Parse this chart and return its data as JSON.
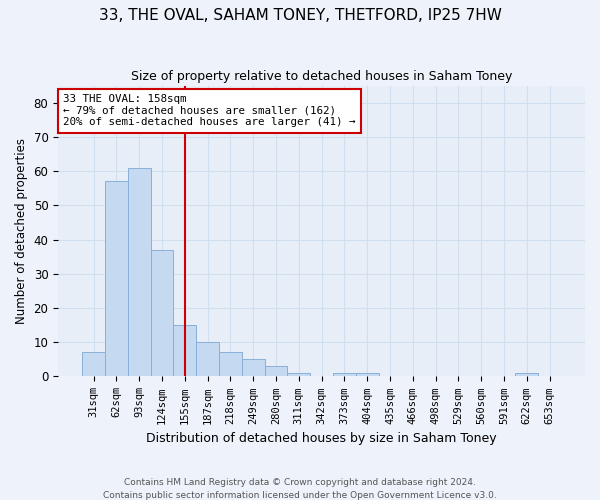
{
  "title1": "33, THE OVAL, SAHAM TONEY, THETFORD, IP25 7HW",
  "title2": "Size of property relative to detached houses in Saham Toney",
  "xlabel": "Distribution of detached houses by size in Saham Toney",
  "ylabel": "Number of detached properties",
  "categories": [
    "31sqm",
    "62sqm",
    "93sqm",
    "124sqm",
    "155sqm",
    "187sqm",
    "218sqm",
    "249sqm",
    "280sqm",
    "311sqm",
    "342sqm",
    "373sqm",
    "404sqm",
    "435sqm",
    "466sqm",
    "498sqm",
    "529sqm",
    "560sqm",
    "591sqm",
    "622sqm",
    "653sqm"
  ],
  "values": [
    7,
    57,
    61,
    37,
    15,
    10,
    7,
    5,
    3,
    1,
    0,
    1,
    1,
    0,
    0,
    0,
    0,
    0,
    0,
    1,
    0
  ],
  "bar_color": "#c5d9f0",
  "bar_edge_color": "#8ab0d8",
  "vline_x_index": 4,
  "vline_color": "#cc0000",
  "annotation_text": "33 THE OVAL: 158sqm\n← 79% of detached houses are smaller (162)\n20% of semi-detached houses are larger (41) →",
  "annotation_box_color": "#ffffff",
  "annotation_box_edge_color": "#cc0000",
  "ylim": [
    0,
    85
  ],
  "yticks": [
    0,
    10,
    20,
    30,
    40,
    50,
    60,
    70,
    80
  ],
  "grid_color": "#d0dff0",
  "background_color": "#e8eef8",
  "fig_background_color": "#eef2fa",
  "footer1": "Contains HM Land Registry data © Crown copyright and database right 2024.",
  "footer2": "Contains public sector information licensed under the Open Government Licence v3.0."
}
